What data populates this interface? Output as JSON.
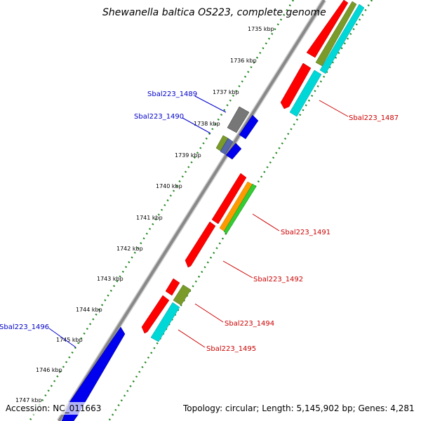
{
  "title": "Shewanella baltica OS223, complete genome",
  "footer": {
    "accession": "Accession: NC_011663",
    "topology": "Topology: circular; Length: 5,145,902 bp; Genes: 4,281"
  },
  "kbp_labels": [
    "1735 kbp",
    "1736 kbp",
    "1737 kbp",
    "1738 kbp",
    "1739 kbp",
    "1740 kbp",
    "1741 kbp",
    "1742 kbp",
    "1743 kbp",
    "1744 kbp",
    "1745 kbp",
    "1746 kbp",
    "1747 kbp"
  ],
  "gene_labels": [
    {
      "name": "Sbal223_1489",
      "color": "#0000cc"
    },
    {
      "name": "Sbal223_1490",
      "color": "#0000cc"
    },
    {
      "name": "Sbal223_1496",
      "color": "#0000cc"
    },
    {
      "name": "Sbal223_1487",
      "color": "#cc0000"
    },
    {
      "name": "Sbal223_1491",
      "color": "#cc0000"
    },
    {
      "name": "Sbal223_1492",
      "color": "#cc0000"
    },
    {
      "name": "Sbal223_1494",
      "color": "#cc0000"
    },
    {
      "name": "Sbal223_1495",
      "color": "#cc0000"
    }
  ],
  "colors": {
    "red": "#ff0000",
    "blue": "#0000ee",
    "cyan": "#00d8d8",
    "olive": "#7a9a2a",
    "orange": "#ff9900",
    "green": "#33cc33",
    "gray": "#777777",
    "slate": "#5566aa",
    "dots": "#228822"
  }
}
